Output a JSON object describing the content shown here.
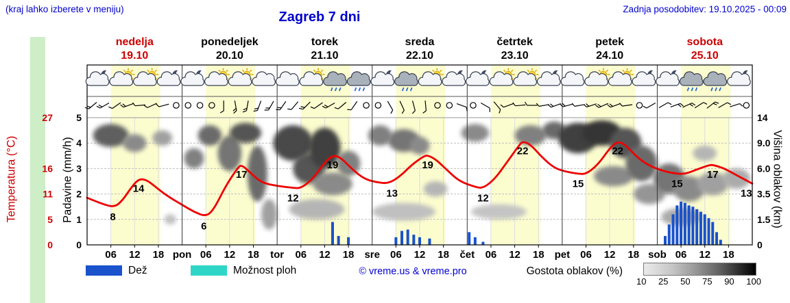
{
  "header": {
    "hint": "(kraj lahko izberete v meniju)",
    "title": "Zagreb 7 dni",
    "updated": "Zadnja posodobitev: 19.10.2025 - 00:09"
  },
  "days": [
    {
      "name": "nedelja",
      "date": "19.10",
      "weekend": true
    },
    {
      "name": "ponedeljek",
      "date": "20.10",
      "weekend": false
    },
    {
      "name": "torek",
      "date": "21.10",
      "weekend": false
    },
    {
      "name": "sreda",
      "date": "22.10",
      "weekend": false
    },
    {
      "name": "četrtek",
      "date": "23.10",
      "weekend": false
    },
    {
      "name": "petek",
      "date": "24.10",
      "weekend": false
    },
    {
      "name": "sobota",
      "date": "25.10",
      "weekend": true
    }
  ],
  "axes": {
    "temp_label": "Temperatura (°C)",
    "precip_label": "Padavine (mm/h)",
    "cloud_label": "Višina oblakov (km)",
    "temp_ticks": [
      {
        "v": "27",
        "row": 0
      },
      {
        "v": "16",
        "row": 2
      },
      {
        "v": "11",
        "row": 3
      },
      {
        "v": "5",
        "row": 4
      },
      {
        "v": "0",
        "row": 5
      }
    ],
    "precip_ticks": [
      "5",
      "4",
      "3",
      "2",
      "1",
      "0"
    ],
    "cloud_ticks": [
      "14",
      "9.0",
      "6.0",
      "3.5",
      "1.5",
      "0"
    ],
    "time_ticks": [
      "06",
      "12",
      "18"
    ],
    "day_abbrevs": [
      "pon",
      "tor",
      "sre",
      "čet",
      "pet",
      "sob"
    ]
  },
  "legend": {
    "rain": "Dež",
    "showers": "Možnost ploh",
    "credit": "© vreme.us & vreme.pro",
    "cloud_density": "Gostota oblakov (%)",
    "density_ticks": [
      "10",
      "25",
      "50",
      "75",
      "90",
      "100"
    ]
  },
  "colors": {
    "accent_blue": "#0000cc",
    "weekend": "#cc0000",
    "temp": "#ee0000",
    "temp_text": "#cc0000",
    "rain": "#1a52cc",
    "showers": "#2fd6c8",
    "daylight": "#fcfdcf"
  },
  "chart_data": {
    "type": "line",
    "title": "Zagreb 7 dni meteogram",
    "x_unit": "hours from 19.10 00:00 (0-168)",
    "ylim_precip": [
      0,
      5
    ],
    "temp_axis_max": 27,
    "daylight": [
      6,
      18.5
    ],
    "temperature": [
      [
        0,
        10
      ],
      [
        4,
        8.6
      ],
      [
        7,
        8
      ],
      [
        9,
        9.5
      ],
      [
        11,
        12
      ],
      [
        13,
        14
      ],
      [
        15,
        13.8
      ],
      [
        17,
        12.5
      ],
      [
        20,
        10.5
      ],
      [
        24,
        8.5
      ],
      [
        27,
        7
      ],
      [
        30,
        6
      ],
      [
        32,
        7.5
      ],
      [
        35,
        12.5
      ],
      [
        38,
        16.3
      ],
      [
        39,
        17
      ],
      [
        41,
        15.5
      ],
      [
        44,
        13.2
      ],
      [
        48,
        12.5
      ],
      [
        52,
        12.1
      ],
      [
        54,
        12
      ],
      [
        57,
        14
      ],
      [
        60,
        17.5
      ],
      [
        62,
        19
      ],
      [
        64,
        18.6
      ],
      [
        67,
        16
      ],
      [
        70,
        14
      ],
      [
        73,
        13.3
      ],
      [
        76,
        13
      ],
      [
        79,
        14.5
      ],
      [
        82,
        17
      ],
      [
        85,
        18.8
      ],
      [
        86,
        19
      ],
      [
        88,
        18.2
      ],
      [
        91,
        15.8
      ],
      [
        94,
        13.5
      ],
      [
        98,
        12.3
      ],
      [
        100,
        12
      ],
      [
        103,
        14
      ],
      [
        106,
        17.5
      ],
      [
        109,
        21
      ],
      [
        110,
        22
      ],
      [
        112,
        21.3
      ],
      [
        115,
        18.5
      ],
      [
        118,
        16.3
      ],
      [
        121,
        15.5
      ],
      [
        124,
        15.1
      ],
      [
        126,
        15
      ],
      [
        129,
        17
      ],
      [
        132,
        20.5
      ],
      [
        134,
        22
      ],
      [
        136,
        21.2
      ],
      [
        139,
        18.5
      ],
      [
        142,
        16.8
      ],
      [
        145,
        15.8
      ],
      [
        148,
        15.2
      ],
      [
        151,
        15
      ],
      [
        154,
        16
      ],
      [
        157,
        16.9
      ],
      [
        158,
        17
      ],
      [
        161,
        16.2
      ],
      [
        164,
        14.8
      ],
      [
        168,
        13
      ]
    ],
    "temp_labels": [
      {
        "h": 6.5,
        "t": 8,
        "label": "8"
      },
      {
        "h": 13,
        "t": 14,
        "label": "14"
      },
      {
        "h": 29.5,
        "t": 6,
        "label": "6"
      },
      {
        "h": 39,
        "t": 17,
        "label": "17"
      },
      {
        "h": 52,
        "t": 12,
        "label": "12"
      },
      {
        "h": 62,
        "t": 19,
        "label": "19"
      },
      {
        "h": 77,
        "t": 13,
        "label": "13"
      },
      {
        "h": 86,
        "t": 19,
        "label": "19"
      },
      {
        "h": 100,
        "t": 12,
        "label": "12"
      },
      {
        "h": 110,
        "t": 22,
        "label": "22"
      },
      {
        "h": 124,
        "t": 15,
        "label": "15"
      },
      {
        "h": 134,
        "t": 22,
        "label": "22"
      },
      {
        "h": 149,
        "t": 15,
        "label": "15"
      },
      {
        "h": 158,
        "t": 17,
        "label": "17"
      },
      {
        "h": 166.5,
        "t": 13,
        "label": "13"
      }
    ],
    "rain_bars": [
      [
        62,
        0.9
      ],
      [
        63.5,
        0.35
      ],
      [
        66,
        0.3
      ],
      [
        78,
        0.3
      ],
      [
        79.5,
        0.55
      ],
      [
        81,
        0.6
      ],
      [
        82.5,
        0.4
      ],
      [
        84,
        0.3
      ],
      [
        86.5,
        0.25
      ],
      [
        96.5,
        0.5
      ],
      [
        98,
        0.3
      ],
      [
        100,
        0.12
      ],
      [
        146,
        0.35
      ],
      [
        147,
        0.8
      ],
      [
        148,
        1.2
      ],
      [
        149,
        1.55
      ],
      [
        150,
        1.7
      ],
      [
        151,
        1.65
      ],
      [
        152,
        1.55
      ],
      [
        153,
        1.5
      ],
      [
        154,
        1.4
      ],
      [
        155,
        1.3
      ],
      [
        156,
        1.2
      ],
      [
        157,
        1.05
      ],
      [
        158,
        0.9
      ],
      [
        159,
        0.5
      ],
      [
        160,
        0.2
      ]
    ],
    "clouds": [
      {
        "h": 6,
        "v": 4.3,
        "w": 9,
        "ht": 0.9,
        "d": 0.65
      },
      {
        "h": 12,
        "v": 4.0,
        "w": 6,
        "ht": 0.7,
        "d": 0.45
      },
      {
        "h": 19,
        "v": 4.2,
        "w": 5,
        "ht": 0.6,
        "d": 0.35
      },
      {
        "h": 21,
        "v": 1.0,
        "w": 3,
        "ht": 0.4,
        "d": 0.2
      },
      {
        "h": 27,
        "v": 3.4,
        "w": 5,
        "ht": 0.8,
        "d": 0.5
      },
      {
        "h": 31,
        "v": 4.3,
        "w": 6,
        "ht": 0.8,
        "d": 0.6
      },
      {
        "h": 36,
        "v": 3.6,
        "w": 6,
        "ht": 1.4,
        "d": 0.55
      },
      {
        "h": 40,
        "v": 4.4,
        "w": 8,
        "ht": 0.8,
        "d": 0.7
      },
      {
        "h": 43,
        "v": 2.8,
        "w": 5,
        "ht": 2.2,
        "d": 0.6
      },
      {
        "h": 46,
        "v": 1.2,
        "w": 4,
        "ht": 1.2,
        "d": 0.35
      },
      {
        "h": 52,
        "v": 4.0,
        "w": 10,
        "ht": 1.4,
        "d": 0.75
      },
      {
        "h": 56,
        "v": 3.0,
        "w": 8,
        "ht": 1.2,
        "d": 0.7
      },
      {
        "h": 60,
        "v": 3.8,
        "w": 8,
        "ht": 1.6,
        "d": 0.8
      },
      {
        "h": 62,
        "v": 2.4,
        "w": 10,
        "ht": 0.9,
        "d": 0.45
      },
      {
        "h": 58,
        "v": 1.4,
        "w": 14,
        "ht": 0.8,
        "d": 0.25
      },
      {
        "h": 66,
        "v": 3.2,
        "w": 6,
        "ht": 1.0,
        "d": 0.5
      },
      {
        "h": 74,
        "v": 4.3,
        "w": 6,
        "ht": 0.8,
        "d": 0.5
      },
      {
        "h": 80,
        "v": 4.1,
        "w": 8,
        "ht": 0.9,
        "d": 0.55
      },
      {
        "h": 84,
        "v": 3.9,
        "w": 5,
        "ht": 0.7,
        "d": 0.45
      },
      {
        "h": 80,
        "v": 1.3,
        "w": 16,
        "ht": 0.7,
        "d": 0.2
      },
      {
        "h": 88,
        "v": 2.2,
        "w": 6,
        "ht": 0.6,
        "d": 0.25
      },
      {
        "h": 98,
        "v": 4.4,
        "w": 7,
        "ht": 0.7,
        "d": 0.45
      },
      {
        "h": 104,
        "v": 1.3,
        "w": 14,
        "ht": 0.6,
        "d": 0.18
      },
      {
        "h": 112,
        "v": 4.3,
        "w": 8,
        "ht": 0.8,
        "d": 0.5
      },
      {
        "h": 118,
        "v": 4.5,
        "w": 6,
        "ht": 0.7,
        "d": 0.6
      },
      {
        "h": 124,
        "v": 4.2,
        "w": 10,
        "ht": 1.2,
        "d": 0.8
      },
      {
        "h": 130,
        "v": 4.4,
        "w": 10,
        "ht": 1.0,
        "d": 0.85
      },
      {
        "h": 136,
        "v": 4.0,
        "w": 8,
        "ht": 1.2,
        "d": 0.7
      },
      {
        "h": 133,
        "v": 2.7,
        "w": 10,
        "ht": 0.8,
        "d": 0.45
      },
      {
        "h": 140,
        "v": 3.2,
        "w": 8,
        "ht": 1.4,
        "d": 0.6
      },
      {
        "h": 142,
        "v": 2.0,
        "w": 8,
        "ht": 0.8,
        "d": 0.4
      },
      {
        "h": 147,
        "v": 2.6,
        "w": 8,
        "ht": 1.2,
        "d": 0.55
      },
      {
        "h": 152,
        "v": 2.2,
        "w": 8,
        "ht": 1.0,
        "d": 0.45
      },
      {
        "h": 150,
        "v": 1.1,
        "w": 10,
        "ht": 0.7,
        "d": 0.3
      },
      {
        "h": 158,
        "v": 2.4,
        "w": 8,
        "ht": 0.9,
        "d": 0.35
      },
      {
        "h": 164,
        "v": 2.6,
        "w": 7,
        "ht": 0.8,
        "d": 0.3
      },
      {
        "h": 156,
        "v": 3.6,
        "w": 6,
        "ht": 0.6,
        "d": 0.25
      }
    ],
    "icons": [
      [
        "cloud-moon",
        "sun-cloud",
        "sun-cloud",
        "cloud-moon"
      ],
      [
        "cloud-moon",
        "sun-cloud",
        "sun-cloud",
        "cloud"
      ],
      [
        "cloud",
        "sun-cloud",
        "rain-cloud",
        "rain-cloud"
      ],
      [
        "cloud-moon",
        "rain-cloud",
        "sun-cloud",
        "cloud-moon"
      ],
      [
        "cloud-moon",
        "sun-cloud",
        "sun-cloud",
        "cloud-moon"
      ],
      [
        "cloud",
        "sun-cloud",
        "sun-cloud",
        "cloud-moon"
      ],
      [
        "cloud-moon",
        "rain-cloud",
        "rain-cloud",
        "cloud-moon"
      ]
    ],
    "wind": [
      [
        1.5,
        230,
        2
      ],
      [
        4.5,
        240,
        2
      ],
      [
        7.5,
        235,
        1
      ],
      [
        10.5,
        250,
        2
      ],
      [
        13.5,
        265,
        1
      ],
      [
        16.5,
        245,
        1
      ],
      [
        19.5,
        255,
        1
      ],
      [
        22.5
      ],
      [
        25.5
      ],
      [
        28.5
      ],
      [
        31.5
      ],
      [
        34.5,
        180,
        1
      ],
      [
        37.5,
        170,
        2
      ],
      [
        40.5,
        190,
        2
      ],
      [
        43.5,
        200,
        2
      ],
      [
        46.5,
        210,
        2
      ],
      [
        49.5,
        215,
        2
      ],
      [
        52.5,
        220,
        1
      ],
      [
        55.5,
        225,
        2
      ],
      [
        58.5,
        235,
        1
      ],
      [
        61.5,
        240,
        2
      ],
      [
        64.5,
        230,
        1
      ],
      [
        67.5,
        215,
        1
      ],
      [
        70.5
      ],
      [
        73.5
      ],
      [
        76.5,
        150,
        1
      ],
      [
        79.5,
        155,
        1
      ],
      [
        82.5,
        165,
        1
      ],
      [
        85.5,
        175,
        1
      ],
      [
        88.5
      ],
      [
        91.5
      ],
      [
        94.5,
        110,
        1
      ],
      [
        97.5
      ],
      [
        100.5,
        120,
        1
      ],
      [
        103.5,
        140,
        1
      ],
      [
        106.5,
        250,
        1
      ],
      [
        109.5,
        265,
        1
      ],
      [
        112.5,
        270,
        1
      ],
      [
        115.5,
        260,
        1
      ],
      [
        118.5,
        250,
        2
      ],
      [
        121.5,
        255,
        2
      ],
      [
        124.5,
        260,
        1
      ],
      [
        127.5,
        252,
        2
      ],
      [
        130.5,
        246,
        2
      ],
      [
        133.5,
        250,
        2
      ],
      [
        136.5,
        262,
        1
      ],
      [
        139.5
      ],
      [
        142.5,
        240,
        1
      ],
      [
        145.5,
        60,
        1
      ],
      [
        148.5,
        70,
        2
      ],
      [
        151.5,
        65,
        2
      ],
      [
        154.5,
        58,
        1
      ],
      [
        157.5,
        52,
        2
      ],
      [
        160.5,
        60,
        1
      ],
      [
        163.5,
        72,
        1
      ],
      [
        166.5
      ]
    ]
  }
}
